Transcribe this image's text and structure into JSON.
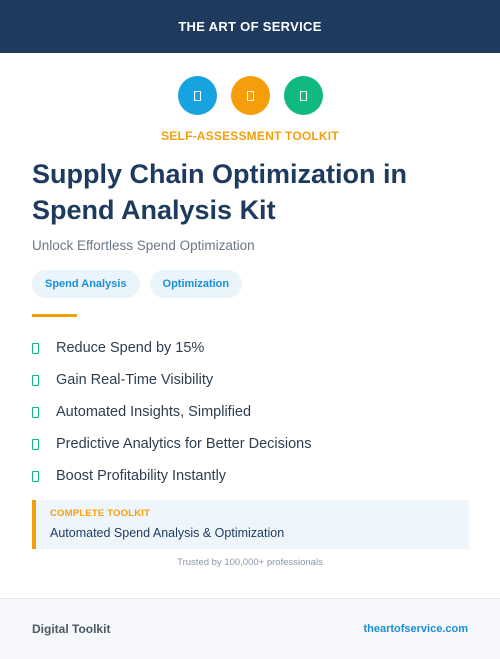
{
  "header": {
    "brand": "THE ART OF SERVICE"
  },
  "icons": [
    {
      "name": "blue-badge-icon",
      "color": "#17a2e0"
    },
    {
      "name": "orange-badge-icon",
      "color": "#f59e0b"
    },
    {
      "name": "green-badge-icon",
      "color": "#10b981"
    }
  ],
  "kicker": {
    "text": "SELF-ASSESSMENT TOOLKIT",
    "color": "#f59e0b"
  },
  "title": "Supply Chain Optimization in Spend Analysis Kit",
  "subtitle": "Unlock Effortless Spend Optimization",
  "tags": [
    "Spend Analysis",
    "Optimization"
  ],
  "features": [
    "Reduce Spend by 15%",
    "Gain Real-Time Visibility",
    "Automated Insights, Simplified",
    "Predictive Analytics for Better Decisions",
    "Boost Profitability Instantly"
  ],
  "callout": {
    "label": "COMPLETE TOOLKIT",
    "text": "Automated Spend Analysis & Optimization"
  },
  "trusted": "Trusted by 100,000+ professionals",
  "footer": {
    "left": "Digital Toolkit",
    "right": "theartofservice.com"
  }
}
